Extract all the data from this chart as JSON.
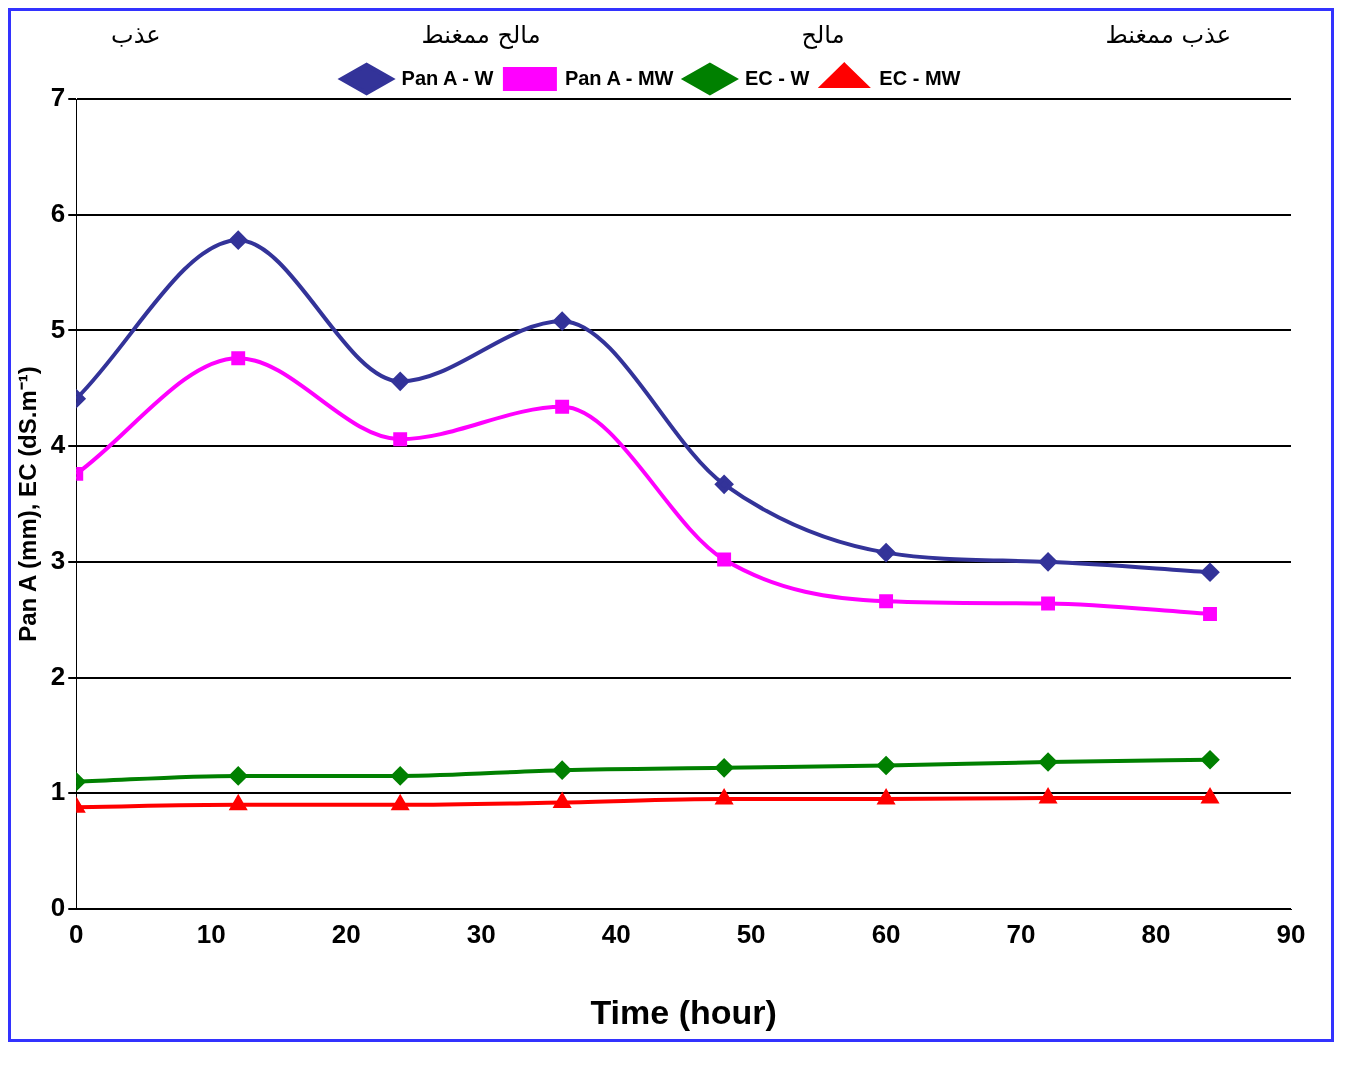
{
  "chart_data": {
    "type": "line",
    "xlabel": "Time (hour)",
    "ylabel": "Pan A (mm), EC (dS.m⁻¹)",
    "annotations": [
      "عذب ممغنط",
      "مالح",
      "مالح ممغنط",
      "عذب"
    ],
    "x": [
      0,
      12,
      24,
      36,
      48,
      60,
      72,
      84
    ],
    "series": [
      {
        "name": "Pan A - W",
        "color": "#333399",
        "marker": "diamond",
        "values": [
          4.41,
          5.78,
          4.56,
          5.08,
          3.67,
          3.08,
          3.0,
          2.91
        ]
      },
      {
        "name": "Pan A - MW",
        "color": "#ff00ff",
        "marker": "square",
        "values": [
          3.76,
          4.76,
          4.06,
          4.34,
          3.02,
          2.66,
          2.64,
          2.55
        ]
      },
      {
        "name": "EC - W",
        "color": "#008000",
        "marker": "diamond",
        "values": [
          1.1,
          1.15,
          1.15,
          1.2,
          1.22,
          1.24,
          1.27,
          1.29
        ]
      },
      {
        "name": "EC - MW",
        "color": "#ff0000",
        "marker": "triangle",
        "values": [
          0.88,
          0.9,
          0.9,
          0.92,
          0.95,
          0.95,
          0.96,
          0.96
        ]
      }
    ],
    "xlim": [
      0,
      90
    ],
    "xticks": [
      0,
      10,
      20,
      30,
      40,
      50,
      60,
      70,
      80,
      90
    ],
    "ylim": [
      0,
      7
    ],
    "yticks": [
      0,
      1,
      2,
      3,
      4,
      5,
      6,
      7
    ],
    "grid": "y",
    "legend": "top",
    "line_style": "solid"
  }
}
